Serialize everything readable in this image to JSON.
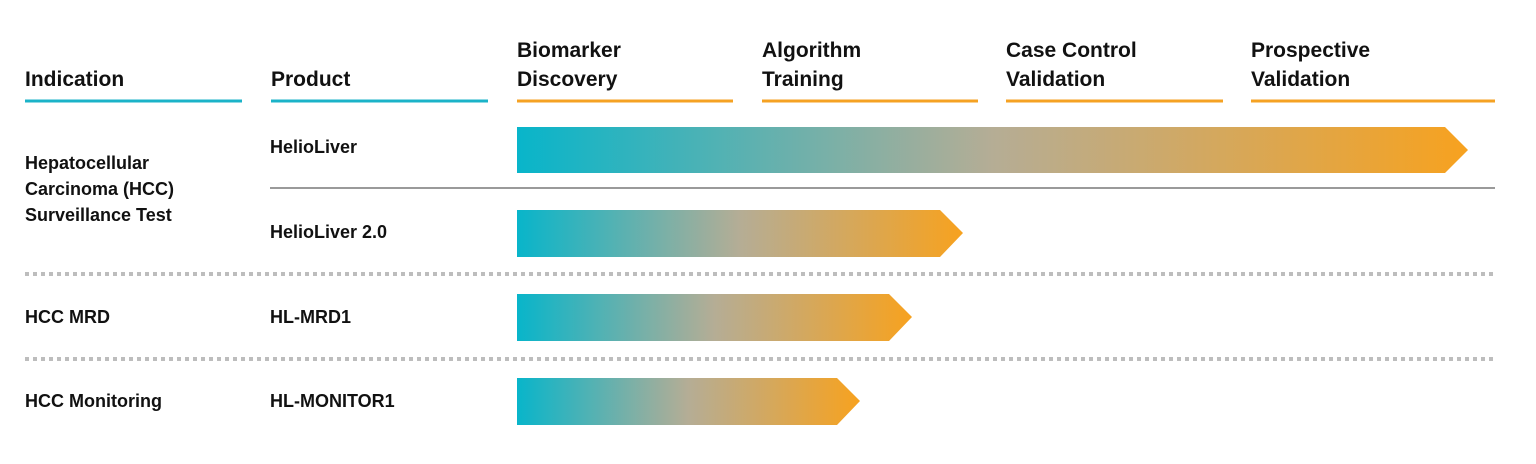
{
  "header": {
    "columns": [
      "Indication",
      "Product",
      "Biomarker Discovery",
      "Algorithm Training",
      "Case Control Validation",
      "Prospective Validation"
    ]
  },
  "groups": [
    {
      "indication": "Hepatocellular Carcinoma (HCC) Surveillance Test",
      "products": [
        "HelioLiver",
        "HelioLiver 2.0"
      ]
    },
    {
      "indication": "HCC MRD",
      "products": [
        "HL-MRD1"
      ]
    },
    {
      "indication": "HCC Monitoring",
      "products": [
        "HL-MONITOR1"
      ]
    }
  ]
}
